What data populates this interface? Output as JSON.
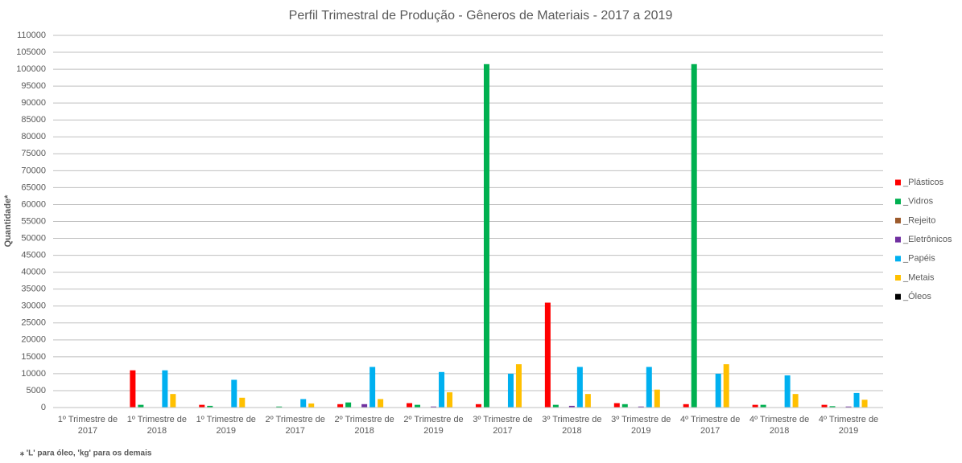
{
  "chart_data": {
    "type": "bar",
    "title": "Perfil Trimestral de Produção - Gêneros de Materiais - 2017 a 2019",
    "y_label": "Quantidade*",
    "footnote": "⁎ 'L' para óleo, 'kg' para os demais",
    "categories": [
      "1º Trimestre de 2017",
      "1º Trimestre de 2018",
      "1º Trimestre de 2019",
      "2º Trimestre de 2017",
      "2º Trimestre de 2018",
      "2º Trimestre de 2019",
      "3º Trimestre de 2017",
      "3º Trimestre de 2018",
      "3º Trimestre de 2019",
      "4º Trimestre de 2017",
      "4º Trimestre de 2018",
      "4º Trimestre de 2019"
    ],
    "series": [
      {
        "name": "_Plásticos",
        "color": "#ff0000",
        "values": [
          0,
          11000,
          800,
          0,
          1000,
          1300,
          1000,
          31000,
          1300,
          1000,
          800,
          800
        ]
      },
      {
        "name": "_Vidros",
        "color": "#00b050",
        "values": [
          0,
          800,
          500,
          300,
          1500,
          800,
          101500,
          800,
          1000,
          101500,
          800,
          400
        ]
      },
      {
        "name": "_Rejeito",
        "color": "#9c5a2c",
        "values": [
          0,
          0,
          0,
          0,
          0,
          0,
          0,
          0,
          0,
          0,
          0,
          0
        ]
      },
      {
        "name": "_Eletrônicos",
        "color": "#7030a0",
        "values": [
          0,
          0,
          0,
          0,
          1000,
          300,
          0,
          500,
          300,
          0,
          0,
          300
        ]
      },
      {
        "name": "_Papéis",
        "color": "#00b0f0",
        "values": [
          0,
          11000,
          8200,
          2500,
          12000,
          10500,
          10000,
          12000,
          12000,
          10000,
          9500,
          4300
        ]
      },
      {
        "name": "_Metais",
        "color": "#ffc000",
        "values": [
          0,
          4000,
          2900,
          1200,
          2500,
          4500,
          12800,
          4000,
          5300,
          12800,
          4000,
          2300
        ]
      },
      {
        "name": "_Óleos",
        "color": "#000000",
        "values": [
          0,
          0,
          0,
          0,
          0,
          0,
          0,
          0,
          0,
          0,
          0,
          0
        ]
      }
    ],
    "ylim": [
      0,
      110000
    ],
    "yticks": [
      0,
      5000,
      10000,
      15000,
      20000,
      25000,
      30000,
      35000,
      40000,
      45000,
      50000,
      55000,
      60000,
      65000,
      70000,
      75000,
      80000,
      85000,
      90000,
      95000,
      100000,
      105000,
      110000
    ],
    "grid": true,
    "legend": "right"
  }
}
